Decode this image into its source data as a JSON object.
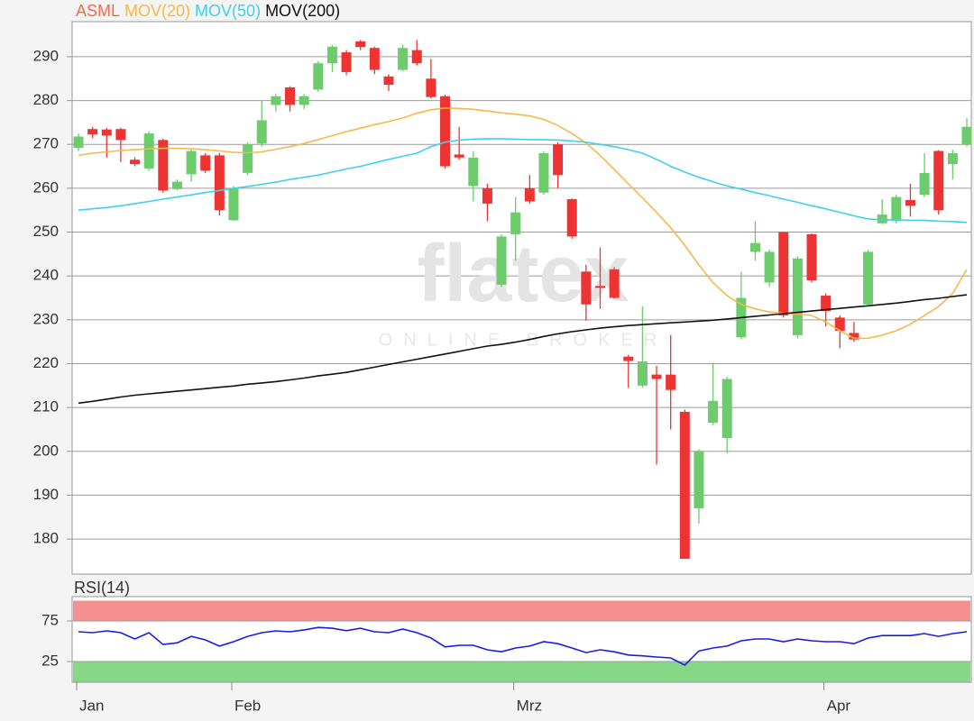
{
  "chart_data": [
    {
      "type": "candlestick",
      "name": "ASML",
      "color": "#f26b4b",
      "up_color": "#6ccc6c",
      "down_color": "#ee3333",
      "watermark": {
        "title": "flatex",
        "subtitle": "ONLINE BROKER"
      },
      "categories": [
        "Jan",
        null,
        null,
        null,
        null,
        null,
        null,
        null,
        null,
        null,
        null,
        "Feb",
        null,
        null,
        null,
        null,
        null,
        null,
        null,
        null,
        null,
        null,
        null,
        null,
        null,
        null,
        null,
        null,
        null,
        null,
        null,
        "Mrz",
        null,
        null,
        null,
        null,
        null,
        null,
        null,
        null,
        null,
        null,
        null,
        null,
        null,
        null,
        null,
        null,
        null,
        null,
        null,
        null,
        null,
        "Apr",
        null,
        null,
        null,
        null,
        null,
        null,
        null,
        null,
        null,
        null
      ],
      "open": [
        269.2,
        273.5,
        273.4,
        273.5,
        266.5,
        264.5,
        271,
        259.8,
        263.2,
        267.5,
        267.5,
        252.7,
        263.5,
        270.2,
        279,
        283,
        279,
        282.5,
        288.5,
        291,
        293.5,
        292,
        285.5,
        287,
        291.5,
        285,
        281,
        267.7,
        260.5,
        260,
        238,
        249.5,
        260,
        259,
        270,
        257.5,
        241,
        237.7,
        241.5,
        221.6,
        215,
        217.5,
        217.5,
        209,
        187,
        206.5,
        203,
        226,
        245.5,
        238.5,
        250,
        226.5,
        249.5,
        235.5,
        230.5,
        227,
        233.5,
        252,
        252.5,
        257.3,
        258.5,
        268.5,
        265.5,
        270
      ],
      "high": [
        272.5,
        274,
        273.8,
        273.8,
        267,
        273,
        271.3,
        262,
        269,
        268,
        268,
        260.5,
        270.5,
        280,
        281.5,
        283.3,
        281.5,
        289,
        292.7,
        291.5,
        293.8,
        292.3,
        286,
        292.8,
        293.8,
        289.5,
        281.3,
        274,
        268.5,
        261,
        249.5,
        258,
        263,
        268.5,
        270.5,
        257.7,
        242.5,
        246.5,
        242,
        222,
        233,
        219.5,
        226.5,
        209.5,
        200.5,
        220,
        217,
        241,
        252.5,
        246,
        250,
        244.5,
        249.7,
        236,
        231,
        229.5,
        246,
        257.5,
        258.5,
        261,
        268,
        268.7,
        268.8,
        276
      ],
      "low": [
        268.5,
        271.5,
        267,
        266,
        265,
        264,
        259,
        259.5,
        261.5,
        263.5,
        253.8,
        252.5,
        263,
        269.5,
        277.5,
        277.5,
        278,
        282,
        286.5,
        285.8,
        291.5,
        286,
        282.2,
        286.7,
        288,
        280.5,
        264.5,
        266.5,
        257,
        252.5,
        237.5,
        243.5,
        256.5,
        258.5,
        260,
        248.5,
        229.8,
        232.5,
        234.8,
        214.5,
        214.5,
        197,
        205,
        175.5,
        183.5,
        206,
        199.5,
        225.5,
        243.5,
        237.5,
        230.5,
        225.8,
        238.5,
        228.5,
        223.5,
        225,
        233,
        251.8,
        252,
        253.5,
        258,
        254,
        262,
        269.5
      ],
      "close": [
        271.8,
        272.3,
        272,
        271,
        265.5,
        272.5,
        259.5,
        261.5,
        268.5,
        264,
        255,
        260,
        270,
        275.5,
        281,
        279,
        281,
        288.5,
        292.3,
        286.5,
        292.2,
        287,
        283.6,
        292,
        288.5,
        280.8,
        265,
        267,
        267,
        256.5,
        249,
        254.5,
        257,
        268,
        263,
        249,
        233.5,
        237.3,
        235,
        220.6,
        220.5,
        216.5,
        214,
        175.5,
        200,
        211.5,
        216.5,
        235,
        247.5,
        245.5,
        231,
        244,
        239,
        232,
        227.5,
        225.5,
        245.5,
        254,
        258,
        256,
        263.5,
        255,
        268,
        274
      ],
      "series": [
        {
          "name": "MOV(20)",
          "color": "#f7b84a",
          "values": [
            267.5,
            268,
            268.3,
            268.6,
            268.8,
            269,
            269.1,
            269.1,
            269,
            268.8,
            268.5,
            268.2,
            268.1,
            268.3,
            268.9,
            269.5,
            270.2,
            271.1,
            272,
            272.9,
            273.7,
            274.5,
            275.2,
            276,
            277.1,
            277.9,
            278.3,
            278.2,
            278,
            277.6,
            277.2,
            276.9,
            276.5,
            275.7,
            274.3,
            272.5,
            270.3,
            267.5,
            264.3,
            261,
            257.8,
            254.5,
            251,
            247,
            242.5,
            238.5,
            235.5,
            233.5,
            232.5,
            231.8,
            231.5,
            231.3,
            231,
            229.5,
            227.5,
            225.8,
            225.8,
            226.5,
            227.5,
            229,
            231,
            233,
            236,
            241.5
          ]
        },
        {
          "name": "MOV(50)",
          "color": "#3fd0ec",
          "values": [
            255,
            255.3,
            255.6,
            256,
            256.5,
            257,
            257.5,
            258,
            258.5,
            259,
            259.5,
            260,
            260.4,
            260.9,
            261.4,
            262,
            262.5,
            263,
            263.7,
            264.4,
            265,
            265.8,
            266.6,
            267.3,
            268,
            269.5,
            270.5,
            271,
            271.2,
            271.3,
            271.3,
            271.2,
            271.1,
            271.1,
            271,
            270.8,
            270.5,
            270,
            269.5,
            268.8,
            268,
            266.6,
            265,
            263.7,
            262.5,
            261.5,
            260.5,
            259.8,
            259,
            258.3,
            257.5,
            256.8,
            256,
            255.3,
            254.5,
            253.7,
            253,
            252.8,
            252.8,
            252.7,
            252.7,
            252.5,
            252.4,
            252.2
          ]
        },
        {
          "name": "MOV(200)",
          "color": "#111111",
          "values": [
            211,
            211.4,
            211.9,
            212.4,
            212.8,
            213.1,
            213.4,
            213.7,
            214,
            214.3,
            214.6,
            214.9,
            215.3,
            215.6,
            215.9,
            216.3,
            216.7,
            217.2,
            217.6,
            218,
            218.6,
            219.2,
            219.8,
            220.4,
            221,
            221.6,
            222.2,
            222.8,
            223.4,
            224,
            224.4,
            224.9,
            225.5,
            226.2,
            226.8,
            227.3,
            227.7,
            228.1,
            228.4,
            228.7,
            228.9,
            229.1,
            229.3,
            229.5,
            229.7,
            229.9,
            230.2,
            230.5,
            230.8,
            231.1,
            231.4,
            231.7,
            232,
            232.3,
            232.6,
            232.9,
            233.2,
            233.5,
            233.8,
            234.2,
            234.6,
            234.9,
            235.3,
            235.7
          ]
        }
      ],
      "ylim": [
        172,
        298
      ],
      "yticks": [
        180,
        190,
        200,
        210,
        220,
        230,
        240,
        250,
        260,
        270,
        280,
        290
      ],
      "grid": true
    },
    {
      "type": "line",
      "series": [
        {
          "name": "RSI(14)",
          "color": "#1a1aee",
          "values": [
            61.7,
            60.5,
            62.8,
            60.5,
            52.8,
            60.5,
            46,
            48,
            56,
            51.7,
            44,
            49.5,
            56,
            60.5,
            62.8,
            61.7,
            64,
            67,
            66,
            63,
            66,
            61.7,
            60.5,
            65,
            60.5,
            54,
            43,
            45,
            45,
            39.5,
            37,
            41.7,
            44,
            49.5,
            47,
            41.7,
            36,
            39.5,
            37,
            33,
            32,
            30.5,
            29.5,
            20.5,
            38,
            41.7,
            44,
            50.5,
            52.8,
            52.8,
            49.5,
            52.8,
            50.5,
            49.5,
            49.5,
            47,
            54,
            57,
            57,
            57,
            59.5,
            56,
            59.5,
            61.7
          ]
        }
      ],
      "band_colors": [
        "#86d886",
        "#f49090"
      ],
      "ylim": [
        0,
        100
      ],
      "yticks": [
        25,
        75
      ],
      "grid": true
    }
  ]
}
